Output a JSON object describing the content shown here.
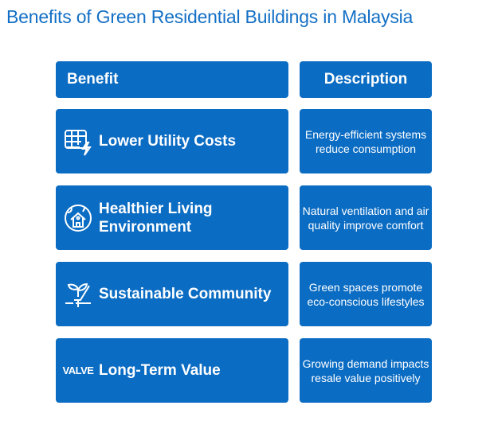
{
  "title": "Benefits of Green Residential Buildings in Malaysia",
  "headers": {
    "benefit": "Benefit",
    "description": "Description"
  },
  "rows": [
    {
      "icon": "spreadsheet-lightning-icon",
      "benefit": "Lower Utility Costs",
      "description": "Energy-efficient systems reduce consumption"
    },
    {
      "icon": "globe-house-icon",
      "benefit": "Healthier Living Environment",
      "description": "Natural ventilation and air quality improve comfort"
    },
    {
      "icon": "hand-plant-icon",
      "benefit": "Sustainable Community",
      "description": "Green spaces promote eco-conscious lifestyles"
    },
    {
      "icon": "valve-logo-icon",
      "icon_text": "VALVE",
      "benefit": "Long-Term Value",
      "description": "Growing demand impacts resale value positively"
    }
  ],
  "colors": {
    "box": "#0b6cc3",
    "title": "#1470c6"
  }
}
